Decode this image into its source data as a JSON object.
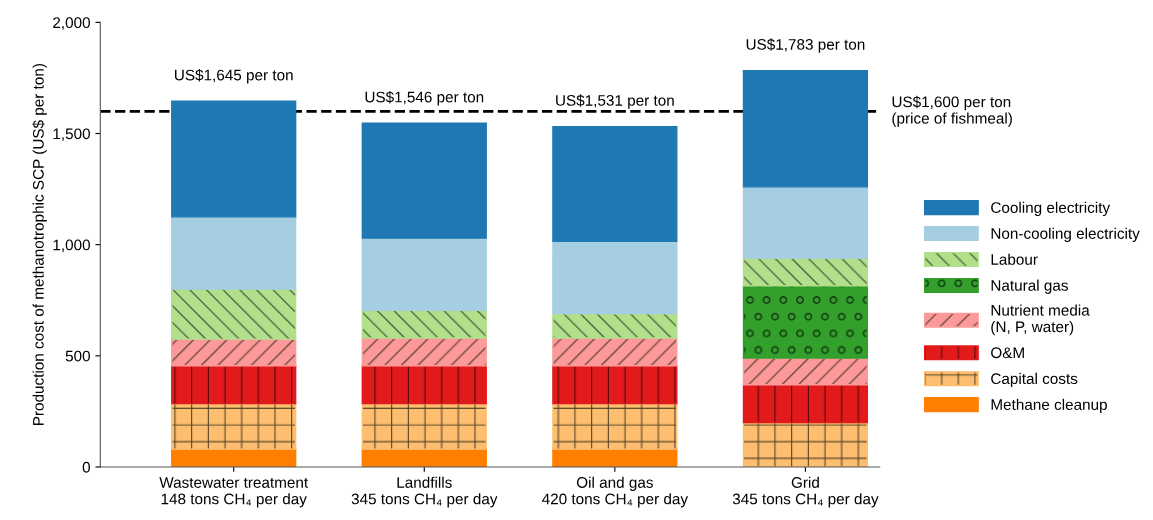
{
  "chart_data": {
    "type": "bar",
    "stacked": true,
    "ylabel": "Production cost of methanotrophic SCP (US$ per ton)",
    "categories": [
      "Wastewater treatment\n148 tons CH₄ per day",
      "Landfills\n345 tons CH₄ per day",
      "Oil and gas\n420 tons CH₄ per day",
      "Grid\n345 tons CH₄ per day"
    ],
    "series": [
      {
        "name": "Methane cleanup",
        "color": "#ff7f00",
        "values": [
          80,
          80,
          80,
          null
        ]
      },
      {
        "name": "Capital costs",
        "color": "#fdbf6f",
        "values": [
          205,
          205,
          205,
          200
        ]
      },
      {
        "name": "O&M",
        "color": "#e31a1c",
        "values": [
          170,
          170,
          170,
          170
        ]
      },
      {
        "name": "Nutrient media\n(N, P, water)",
        "color": "#fb9a99",
        "values": [
          120,
          125,
          125,
          120
        ]
      },
      {
        "name": "Natural gas",
        "color": "#33a02c",
        "values": [
          null,
          null,
          null,
          325
        ]
      },
      {
        "name": "Labour",
        "color": "#b2df8a",
        "values": [
          225,
          125,
          110,
          125
        ]
      },
      {
        "name": "Non-cooling electricity",
        "color": "#a6cee3",
        "values": [
          325,
          325,
          325,
          320
        ]
      },
      {
        "name": "Cooling electricity",
        "color": "#1f78b4",
        "values": [
          520,
          516,
          516,
          523
        ]
      }
    ],
    "totals": [
      "US$1,645 per ton",
      "US$1,546 per ton",
      "US$1,531 per ton",
      "US$1,783 per ton"
    ],
    "ylim": [
      0,
      2000
    ],
    "yticks": [
      0,
      500,
      {
        "value": 1000,
        "label": "1,000"
      },
      {
        "value": 1500,
        "label": "1,500"
      },
      {
        "value": 2000,
        "label": "2,000"
      }
    ],
    "ref_lines": [
      {
        "axis": "y",
        "value": 1600,
        "label": "US$1,600 per ton\n(price of fishmeal)",
        "color": "#000000",
        "line_style": "dashed"
      }
    ],
    "grid": false,
    "legend": "right"
  }
}
